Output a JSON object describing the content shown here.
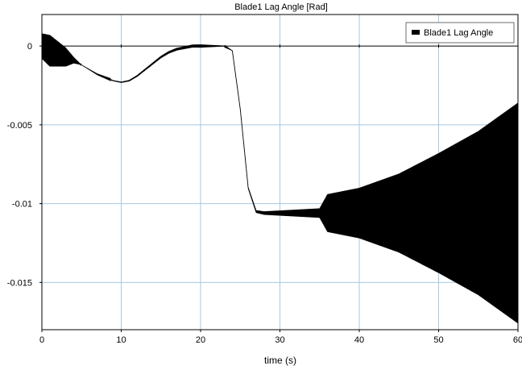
{
  "chart_data": {
    "type": "line",
    "title": "Blade1 Lag Angle [Rad]",
    "xlabel": "time (s)",
    "ylabel": "",
    "xlim": [
      0,
      60
    ],
    "ylim": [
      -0.018,
      0.002
    ],
    "x_ticks": [
      0,
      10,
      20,
      30,
      40,
      50,
      60
    ],
    "x_tick_labels": [
      "0",
      "10",
      "20",
      "30",
      "40",
      "50",
      "60"
    ],
    "y_ticks": [
      0,
      -0.005,
      -0.01,
      -0.015
    ],
    "y_tick_labels": [
      "0",
      "-0.005",
      "-0.01",
      "-0.015"
    ],
    "grid": true,
    "legend_position": "top-right",
    "colors": {
      "series": "#000000",
      "grid": "#a9c8e0",
      "zero_line": "#000000"
    },
    "series": [
      {
        "name": "Blade1 Lag Angle",
        "description_points": {
          "x": [
            0,
            1,
            2,
            3,
            4,
            5,
            6,
            7,
            8,
            9,
            10,
            11,
            12,
            13,
            14,
            15,
            16,
            17,
            18,
            19,
            20,
            21,
            22,
            23,
            24,
            25,
            26,
            27,
            28,
            30,
            32,
            34,
            35,
            40,
            45,
            50,
            55,
            60
          ],
          "y": [
            0,
            -0.0003,
            -0.0005,
            -0.0007,
            -0.0009,
            -0.0012,
            -0.0015,
            -0.0018,
            -0.002,
            -0.0022,
            -0.0023,
            -0.0022,
            -0.0019,
            -0.0015,
            -0.0011,
            -0.0007,
            -0.0004,
            -0.0002,
            -0.0001,
            0,
            0,
            0,
            0,
            0,
            -0.0003,
            -0.004,
            -0.009,
            -0.0105,
            -0.0106,
            -0.0106,
            -0.0106,
            -0.0106,
            -0.0106,
            -0.0106,
            -0.0106,
            -0.0106,
            -0.0106,
            -0.0106
          ]
        },
        "oscillation_envelope": {
          "x": [
            0,
            1,
            2,
            3,
            4,
            5,
            20,
            24,
            35,
            36,
            40,
            45,
            50,
            55,
            60
          ],
          "amplitude": [
            0.0008,
            0.001,
            0.0008,
            0.0006,
            0.0002,
            0,
            0.0001,
            0,
            0.0003,
            0.0012,
            0.0016,
            0.0025,
            0.0038,
            0.0052,
            0.007
          ]
        }
      }
    ]
  }
}
